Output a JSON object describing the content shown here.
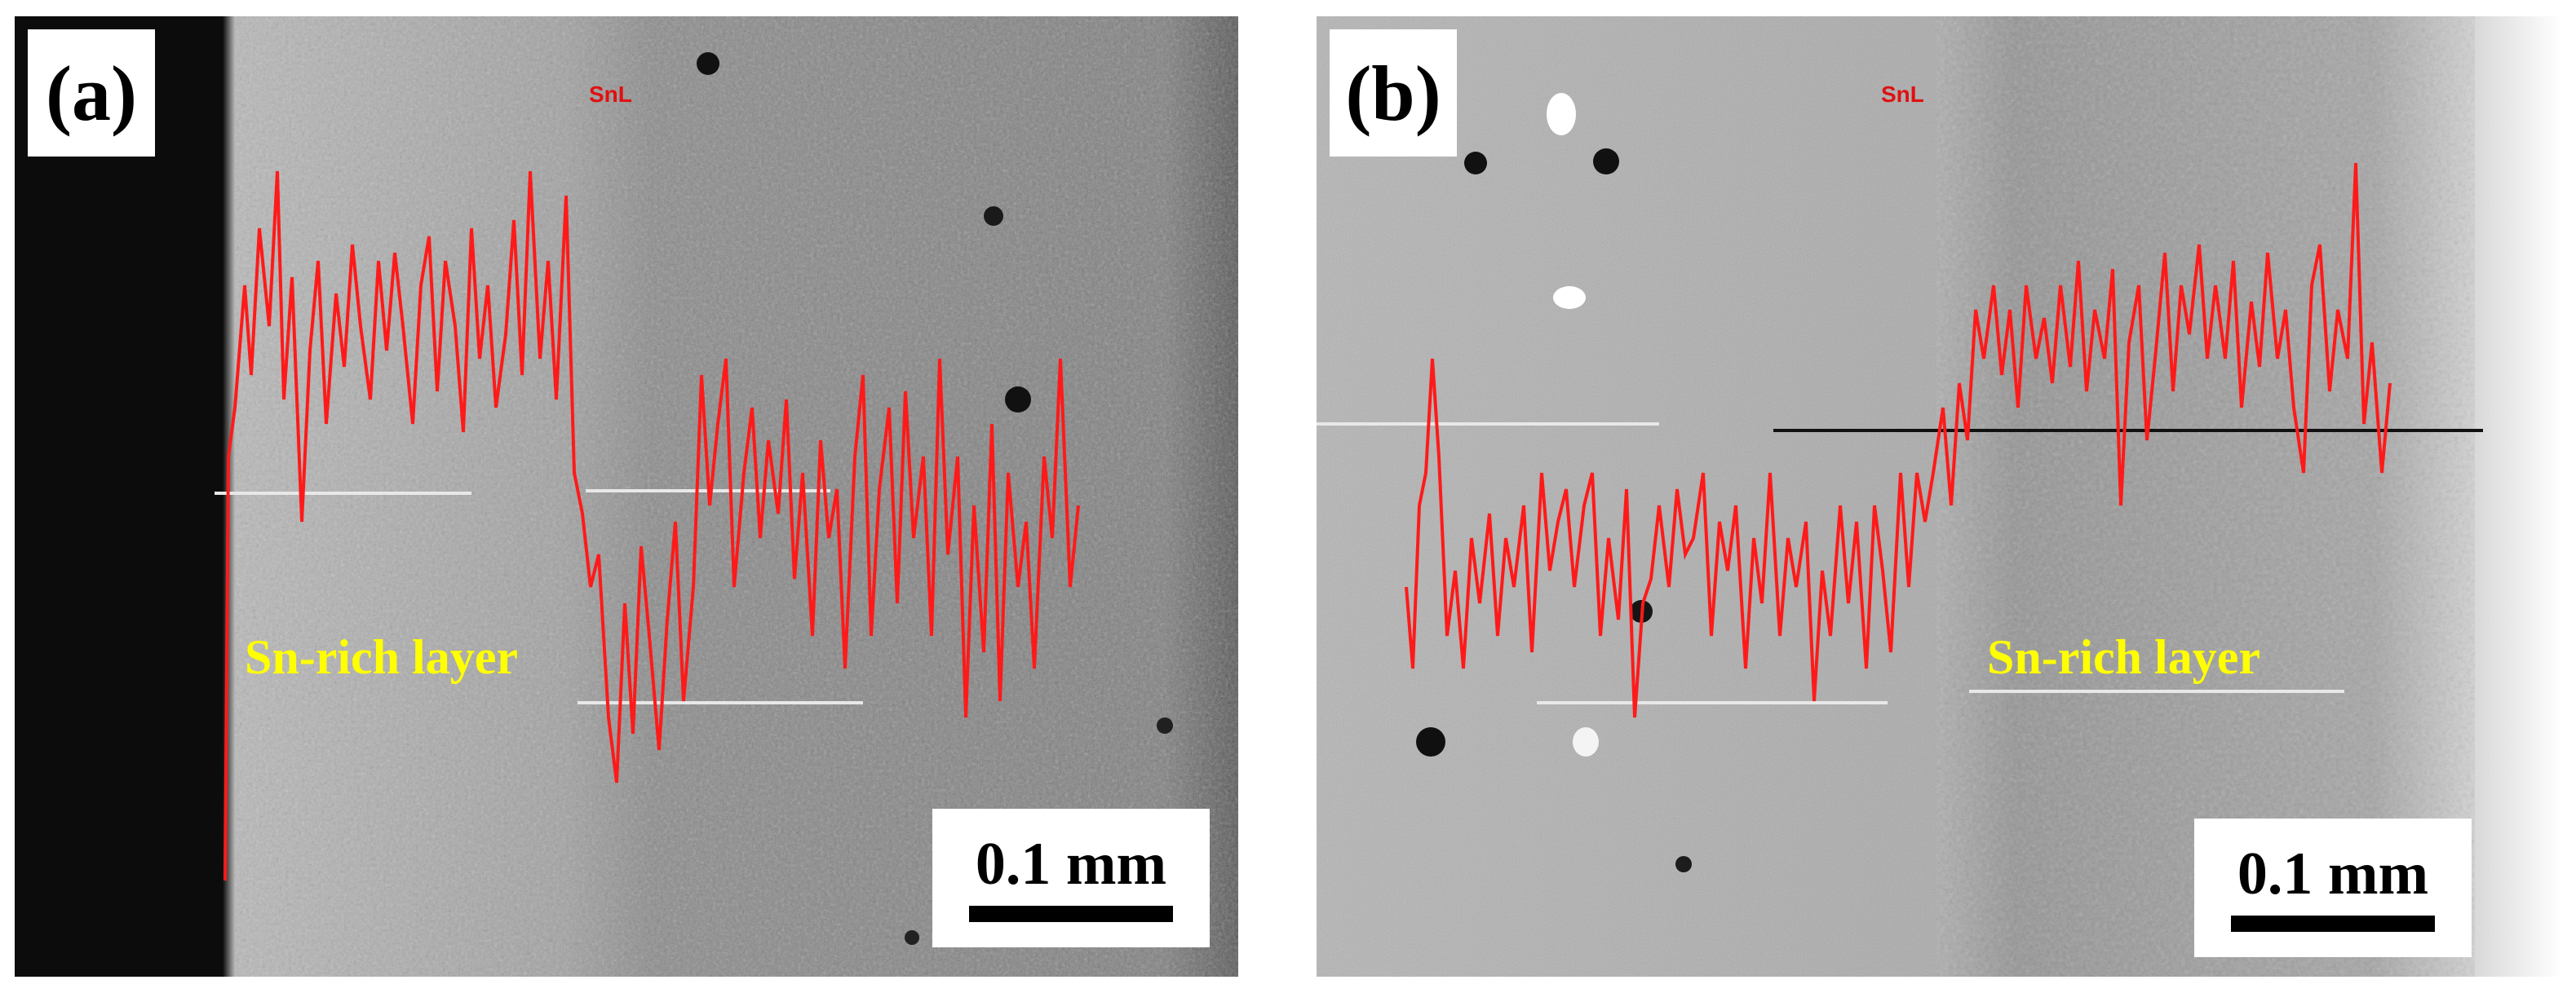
{
  "panels": [
    {
      "label": "(a)",
      "element": "SnL",
      "layer_label": "Sn-rich layer",
      "scale_label": "0.1 mm"
    },
    {
      "label": "(b)",
      "element": "SnL",
      "layer_label": "Sn-rich layer",
      "scale_label": "0.1 mm"
    }
  ],
  "colors": {
    "profile": "#ff1a1a",
    "layer_text": "#ffff00",
    "label_box": "#ffffff"
  }
}
